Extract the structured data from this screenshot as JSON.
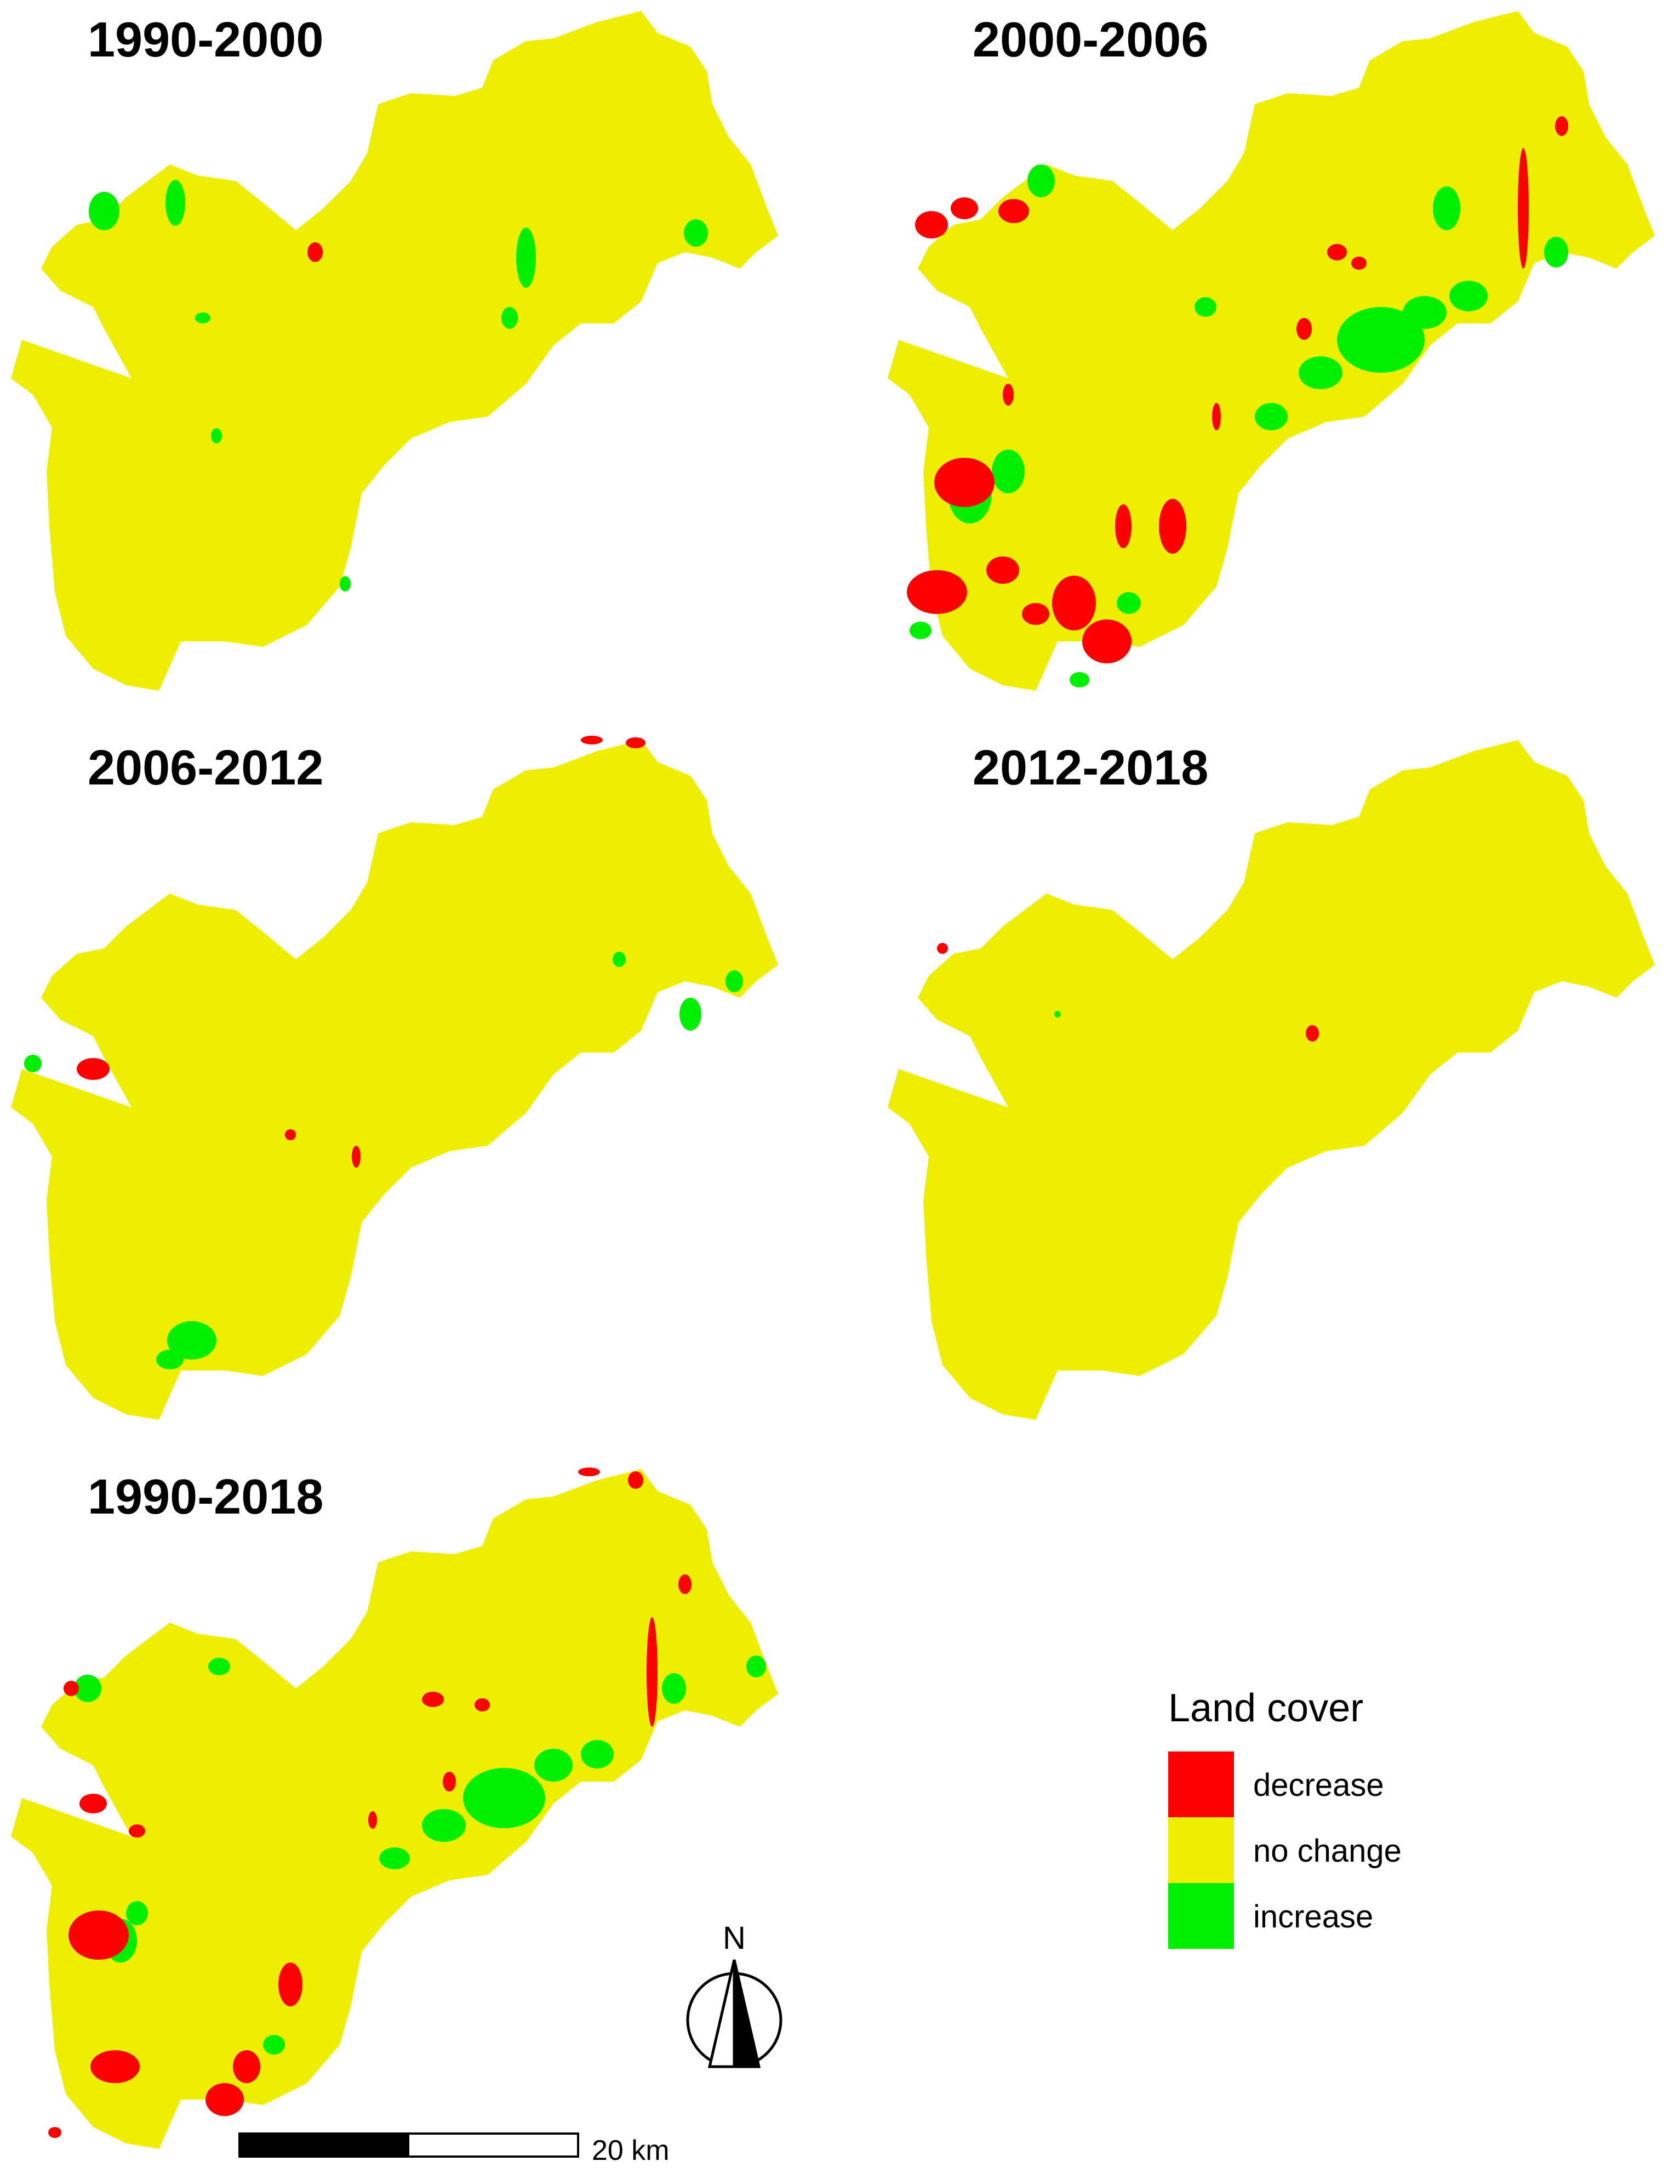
{
  "panels": [
    {
      "title": "1990-2000"
    },
    {
      "title": "2000-2006"
    },
    {
      "title": "2006-2012"
    },
    {
      "title": "2012-2018"
    },
    {
      "title": "1990-2018"
    }
  ],
  "legend": {
    "title": "Land cover",
    "items": [
      {
        "label": "decrease",
        "color": "#ff0000"
      },
      {
        "label": "no change",
        "color": "#eeee00"
      },
      {
        "label": "increase",
        "color": "#00ee00"
      }
    ]
  },
  "north_arrow": {
    "label": "N"
  },
  "scale_bar": {
    "label": "20 km"
  },
  "colors": {
    "decrease": "#ff0000",
    "no_change": "#eeee00",
    "increase": "#00ee00"
  }
}
